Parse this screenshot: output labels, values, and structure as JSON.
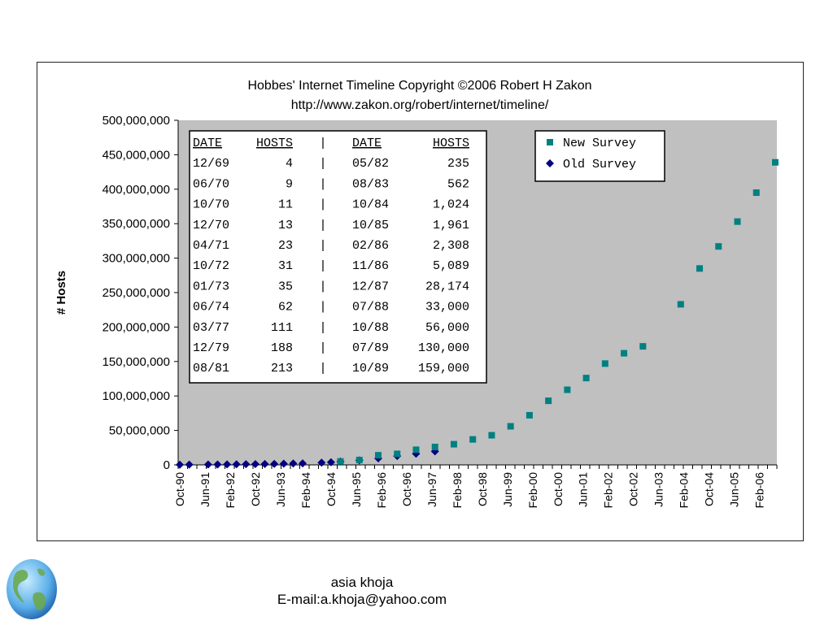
{
  "chart_data": {
    "type": "scatter",
    "title": "Hobbes' Internet Timeline Copyright ©2006 Robert H Zakon",
    "subtitle": "http://www.zakon.org/robert/internet/timeline/",
    "ylabel": "# Hosts",
    "xlabel": "",
    "ylim": [
      0,
      500000000
    ],
    "grid": false,
    "legend_position": "top-right",
    "plot_background": "#c0c0c0",
    "y_ticks": [
      "0",
      "50,000,000",
      "100,000,000",
      "150,000,000",
      "200,000,000",
      "250,000,000",
      "300,000,000",
      "350,000,000",
      "400,000,000",
      "450,000,000",
      "500,000,000"
    ],
    "x_ticks": [
      "Oct-90",
      "Jun-91",
      "Feb-92",
      "Oct-92",
      "Jun-93",
      "Feb-94",
      "Oct-94",
      "Jun-95",
      "Feb-96",
      "Oct-96",
      "Jun-97",
      "Feb-98",
      "Oct-98",
      "Jun-99",
      "Feb-00",
      "Oct-00",
      "Jun-01",
      "Feb-02",
      "Oct-02",
      "Jun-03",
      "Feb-04",
      "Oct-04",
      "Jun-05",
      "Feb-06"
    ],
    "x_start": "1990-10",
    "x_end": "2006-07",
    "series": [
      {
        "name": "New Survey",
        "color": "#008080",
        "marker": "square",
        "points": [
          [
            "1995-01",
            5000000
          ],
          [
            "1995-07",
            7000000
          ],
          [
            "1996-01",
            14000000
          ],
          [
            "1996-07",
            16000000
          ],
          [
            "1997-01",
            22000000
          ],
          [
            "1997-07",
            26000000
          ],
          [
            "1998-01",
            30000000
          ],
          [
            "1998-07",
            37000000
          ],
          [
            "1999-01",
            43000000
          ],
          [
            "1999-07",
            56000000
          ],
          [
            "2000-01",
            72000000
          ],
          [
            "2000-07",
            93000000
          ],
          [
            "2001-01",
            109000000
          ],
          [
            "2001-07",
            126000000
          ],
          [
            "2002-01",
            147000000
          ],
          [
            "2002-07",
            162000000
          ],
          [
            "2003-01",
            172000000
          ],
          [
            "2004-01",
            233000000
          ],
          [
            "2004-07",
            285000000
          ],
          [
            "2005-01",
            317000000
          ],
          [
            "2005-07",
            353000000
          ],
          [
            "2006-01",
            395000000
          ],
          [
            "2006-07",
            439000000
          ]
        ]
      },
      {
        "name": "Old Survey",
        "color": "#000080",
        "marker": "diamond",
        "points": [
          [
            "1990-10",
            313000
          ],
          [
            "1991-01",
            376000
          ],
          [
            "1991-07",
            535000
          ],
          [
            "1991-10",
            617000
          ],
          [
            "1992-01",
            727000
          ],
          [
            "1992-04",
            890000
          ],
          [
            "1992-07",
            992000
          ],
          [
            "1992-10",
            1136000
          ],
          [
            "1993-01",
            1313000
          ],
          [
            "1993-04",
            1486000
          ],
          [
            "1993-07",
            1776000
          ],
          [
            "1993-10",
            2056000
          ],
          [
            "1994-01",
            2217000
          ],
          [
            "1994-07",
            3212000
          ],
          [
            "1994-10",
            3864000
          ],
          [
            "1995-01",
            4852000
          ],
          [
            "1995-07",
            6642000
          ],
          [
            "1996-01",
            9472000
          ],
          [
            "1996-07",
            12881000
          ],
          [
            "1997-01",
            16146000
          ],
          [
            "1997-07",
            19540000
          ]
        ]
      }
    ],
    "inset_table": {
      "headers": [
        "DATE",
        "HOSTS",
        "|",
        "DATE",
        "HOSTS"
      ],
      "rows": [
        [
          "12/69",
          "4",
          "|",
          "05/82",
          "235"
        ],
        [
          "06/70",
          "9",
          "|",
          "08/83",
          "562"
        ],
        [
          "10/70",
          "11",
          "|",
          "10/84",
          "1,024"
        ],
        [
          "12/70",
          "13",
          "|",
          "10/85",
          "1,961"
        ],
        [
          "04/71",
          "23",
          "|",
          "02/86",
          "2,308"
        ],
        [
          "10/72",
          "31",
          "|",
          "11/86",
          "5,089"
        ],
        [
          "01/73",
          "35",
          "|",
          "12/87",
          "28,174"
        ],
        [
          "06/74",
          "62",
          "|",
          "07/88",
          "33,000"
        ],
        [
          "03/77",
          "111",
          "|",
          "10/88",
          "56,000"
        ],
        [
          "12/79",
          "188",
          "|",
          "07/89",
          "130,000"
        ],
        [
          "08/81",
          "213",
          "|",
          "10/89",
          "159,000"
        ]
      ]
    }
  },
  "footer": {
    "name": "asia khoja",
    "email": "E-mail:a.khoja@yahoo.com"
  },
  "decor": {
    "globe_icon": "globe-icon"
  }
}
